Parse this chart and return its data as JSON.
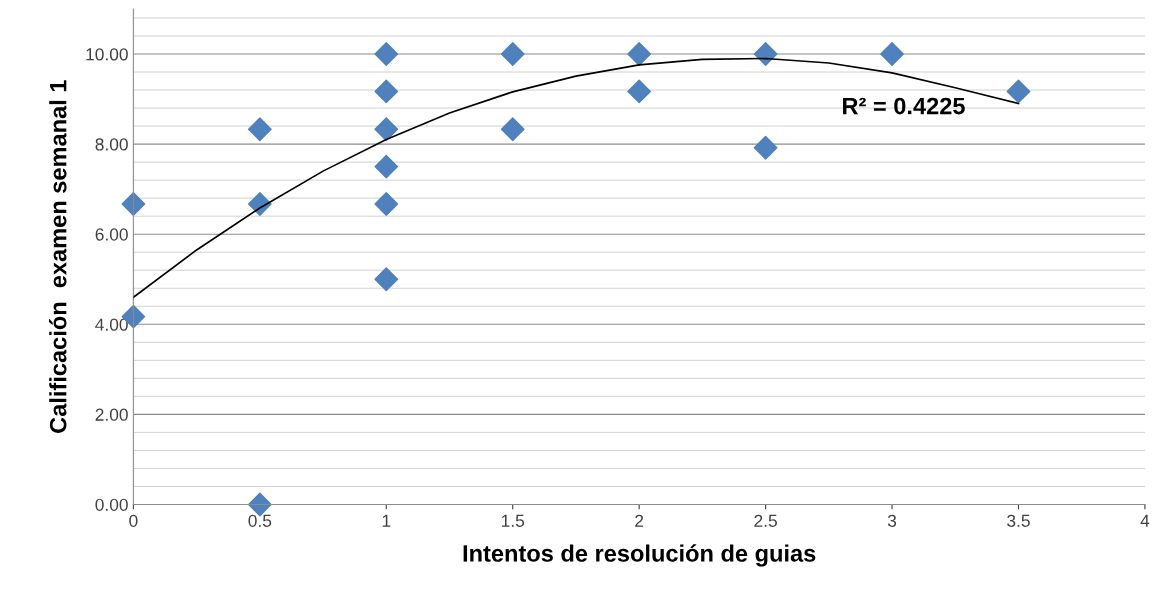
{
  "chart_data": {
    "type": "scatter",
    "xlabel": "Intentos de resolución de guias",
    "ylabel": "Calificación  examen semanal 1",
    "xlim": [
      0,
      4
    ],
    "xticks": [
      0,
      0.5,
      1,
      1.5,
      2,
      2.5,
      3,
      3.5,
      4
    ],
    "ylim": [
      0,
      11
    ],
    "yticks": [
      {
        "value": 0,
        "label": "0.00"
      },
      {
        "value": 2,
        "label": "2.00"
      },
      {
        "value": 4,
        "label": "4.00"
      },
      {
        "value": 6,
        "label": "6.00"
      },
      {
        "value": 8,
        "label": "8.00"
      },
      {
        "value": 10,
        "label": "10.00"
      }
    ],
    "grid": "y",
    "marker": "diamond",
    "legend": false,
    "series": [
      {
        "color": "#4f81bd",
        "x": [
          0,
          0,
          0.5,
          0.5,
          0.5,
          1,
          1,
          1,
          1,
          1,
          1,
          1.5,
          1.5,
          2,
          2,
          2.5,
          2.5,
          3,
          3.5
        ],
        "values": [
          6.67,
          4.17,
          8.33,
          6.67,
          0,
          10,
          9.17,
          8.33,
          7.5,
          6.67,
          5,
          10,
          8.33,
          10,
          9.17,
          10,
          7.92,
          10,
          9.17
        ]
      },
      {
        "type": "line",
        "color": "#000000",
        "marker": "none",
        "x": [
          0,
          0.25,
          0.5,
          0.75,
          1,
          1.25,
          1.5,
          1.75,
          2,
          2.25,
          2.5,
          2.75,
          3,
          3.25,
          3.5
        ],
        "values": [
          4.6,
          5.65,
          6.58,
          7.4,
          8.1,
          8.69,
          9.16,
          9.51,
          9.76,
          9.88,
          9.9,
          9.8,
          9.58,
          9.25,
          8.9
        ]
      }
    ],
    "annotations": [
      "R² = 0.4225"
    ]
  }
}
